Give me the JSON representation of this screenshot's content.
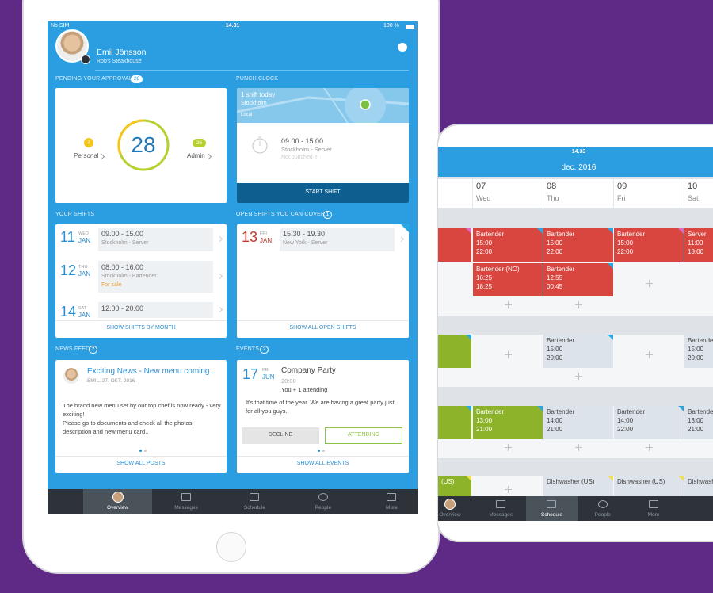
{
  "left_tablet": {
    "status_bar": {
      "carrier": "No SIM",
      "time": "14.31",
      "battery": "100 %"
    },
    "profile": {
      "name": "Emil Jönsson",
      "workplace": "Rob's Steakhouse"
    },
    "pending_approval": {
      "title": "PENDING YOUR APPROVAL",
      "count": 28,
      "total": 28,
      "personal": {
        "count": 2,
        "label": "Personal"
      },
      "admin": {
        "count": 26,
        "label": "Admin"
      }
    },
    "punch_clock": {
      "title": "PUNCH CLOCK",
      "map_title": "1 shift today",
      "map_location": "Stockholm",
      "map_label": "Local",
      "shift_time": "09.00 - 15.00",
      "shift_place": "Stockholm - Server",
      "status": "Not punched in",
      "button": "START SHIFT"
    },
    "your_shifts": {
      "title": "YOUR SHIFTS",
      "shifts": [
        {
          "day": 11,
          "weekday": "WED",
          "month": "JAN",
          "time": "09.00 - 15.00",
          "place": "Stockholm - Server"
        },
        {
          "day": 12,
          "weekday": "THU",
          "month": "JAN",
          "time": "08.00 - 16.00",
          "place": "Stockholm - Bartender",
          "note": "For sale"
        },
        {
          "day": 14,
          "weekday": "SAT",
          "month": "JAN",
          "time": "12.00 - 20.00"
        }
      ],
      "link": "SHOW SHIFTS BY MONTH"
    },
    "open_shifts": {
      "title": "OPEN SHIFTS YOU CAN COVER",
      "count": 1,
      "shifts": [
        {
          "day": 13,
          "weekday": "FRI",
          "month": "JAN",
          "time": "15.30 - 19.30",
          "place": "New York - Server"
        }
      ],
      "link": "SHOW ALL OPEN SHIFTS"
    },
    "news_feed": {
      "title": "NEWS FEED",
      "count": 2,
      "post": {
        "title": "Exciting News - New menu coming...",
        "meta": "EMIL, 27. OKT. 2016",
        "body": "The brand new menu set by our top chef is now ready - very exciting!\nPlease go to documents and check all the photos, description and new menu card.."
      },
      "link": "SHOW ALL POSTS"
    },
    "events": {
      "title": "EVENTS",
      "count": 2,
      "event": {
        "day": 17,
        "weekday": "FRI",
        "month": "JUN",
        "title": "Company Party",
        "time": "20:00",
        "attending": "You + 1 attending",
        "body": "It's that time of the year. We are having a great party just for all you guys."
      },
      "decline": "DECLINE",
      "attend": "ATTENDING",
      "link": "SHOW ALL EVENTS"
    },
    "tabs": [
      "Overview",
      "Messages",
      "Schedule",
      "People",
      "More"
    ]
  },
  "right_tablet": {
    "time": "14.33",
    "month": "dec. 2016",
    "days": [
      {
        "date": "07",
        "weekday": "Wed"
      },
      {
        "date": "08",
        "weekday": "Thu"
      },
      {
        "date": "09",
        "weekday": "Fri"
      },
      {
        "date": "10",
        "weekday": "Sat"
      }
    ],
    "rows": [
      [
        {
          "color": "#d9453f",
          "flag": "#e06bc4"
        },
        {
          "title": "Bartender",
          "start": "15:00",
          "end": "22:00",
          "color": "#d9453f",
          "flag": "#29a8e6"
        },
        {
          "title": "Bartender",
          "start": "15:00",
          "end": "22:00",
          "color": "#d9453f",
          "flag": "#29a8e6"
        },
        {
          "title": "Bartender",
          "start": "15:00",
          "end": "22:00",
          "color": "#d9453f",
          "flag": "#e06bc4"
        },
        {
          "title": "Server",
          "start": "11:00",
          "end": "18:00",
          "color": "#d9453f"
        }
      ],
      [
        null,
        {
          "title": "Bartender (NO)",
          "start": "16:25",
          "end": "18:25",
          "color": "#d9453f"
        },
        {
          "title": "Bartender",
          "start": "12:55",
          "end": "00:45",
          "color": "#d9453f",
          "flag": "#29a8e6"
        },
        null,
        null
      ],
      [
        {
          "color": "#8db32a",
          "flag": "#29a8e6"
        },
        null,
        {
          "title": "Bartender",
          "start": "15:00",
          "end": "20:00",
          "color": "#dde3ea",
          "flag": "#29a8e6"
        },
        null,
        {
          "title": "Bartender",
          "start": "15:00",
          "end": "20:00",
          "color": "#dde3ea"
        }
      ],
      [
        {
          "color": "#8db32a",
          "flag": "#29a8e6"
        },
        {
          "title": "Bartender",
          "start": "13:00",
          "end": "21:00",
          "color": "#8db32a",
          "flag": "#29a8e6"
        },
        {
          "title": "Bartender",
          "start": "14:00",
          "end": "21:00",
          "color": "#dde3ea"
        },
        {
          "title": "Bartender",
          "start": "14:00",
          "end": "22:00",
          "color": "#dde3ea",
          "flag": "#29a8e6"
        },
        {
          "title": "Bartender",
          "start": "13:00",
          "end": "21:00",
          "color": "#dde3ea"
        }
      ],
      [
        {
          "title": "(US)",
          "color": "#8db32a",
          "flag": "#f0e04a"
        },
        null,
        {
          "title": "Dishwasher (US)",
          "color": "#dde3ea",
          "flag": "#f0e04a"
        },
        {
          "title": "Dishwasher (US)",
          "color": "#dde3ea",
          "flag": "#f0e04a"
        },
        {
          "title": "Dishwasher (US)",
          "color": "#dde3ea"
        }
      ]
    ],
    "tabs": [
      "Overview",
      "Messages",
      "Schedule",
      "People",
      "More"
    ]
  }
}
